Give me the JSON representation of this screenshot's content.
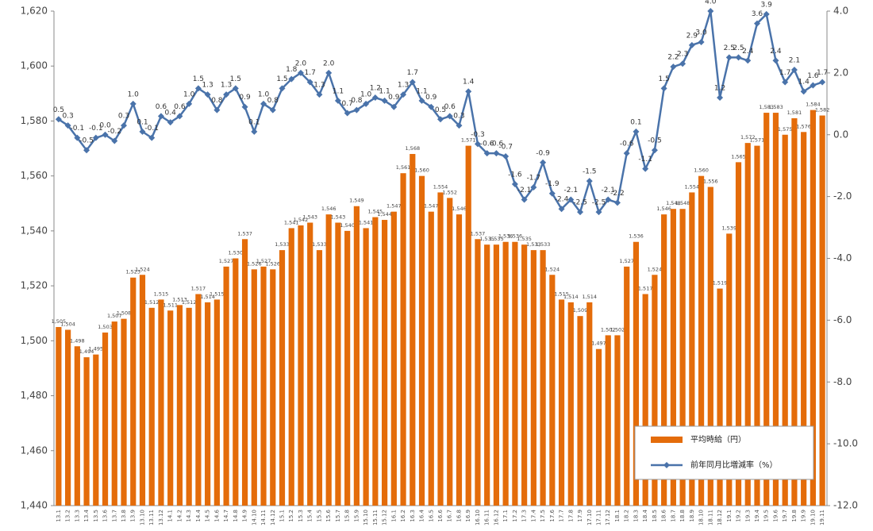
{
  "chart_data": {
    "type": "bar-line",
    "categories": [
      "13.1",
      "13.2",
      "13.3",
      "13.4",
      "13.5",
      "13.6",
      "13.7",
      "13.8",
      "13.9",
      "13.10",
      "13.11",
      "13.12",
      "14.1",
      "14.2",
      "14.3",
      "14.4",
      "14.5",
      "14.6",
      "14.7",
      "14.8",
      "14.9",
      "14.10",
      "14.11",
      "14.12",
      "15.1",
      "15.2",
      "15.3",
      "15.4",
      "15.5",
      "15.6",
      "15.7",
      "15.8",
      "15.9",
      "15.10",
      "15.11",
      "15.12",
      "16.1",
      "16.2",
      "16.3",
      "16.4",
      "16.5",
      "16.6",
      "16.7",
      "16.8",
      "16.9",
      "16.10",
      "16.11",
      "16.12",
      "17.1",
      "17.2",
      "17.3",
      "17.4",
      "17.5",
      "17.6",
      "17.7",
      "17.8",
      "17.9",
      "17.10",
      "17.11",
      "17.12",
      "18.1",
      "18.2",
      "18.3",
      "18.4",
      "18.5",
      "18.6",
      "18.7",
      "18.8",
      "18.9",
      "18.10",
      "18.11",
      "18.12",
      "19.1",
      "19.2",
      "19.3",
      "19.4",
      "19.5",
      "19.6",
      "19.7",
      "19.8",
      "19.9",
      "19.10",
      "19.11"
    ],
    "series": [
      {
        "name": "平均時給（円）",
        "color": "#e46c0a",
        "kind": "bar",
        "values": [
          1505,
          1504,
          1498,
          1494,
          1495,
          1503,
          1507,
          1508,
          1523,
          1524,
          1512,
          1515,
          1511,
          1513,
          1512,
          1517,
          1514,
          1515,
          1527,
          1530,
          1537,
          1526,
          1527,
          1526,
          1533,
          1541,
          1542,
          1543,
          1533,
          1546,
          1543,
          1540,
          1549,
          1541,
          1545,
          1544,
          1547,
          1561,
          1568,
          1560,
          1547,
          1554,
          1552,
          1546,
          1571,
          1537,
          1535,
          1535,
          1536,
          1536,
          1535,
          1533,
          1533,
          1524,
          1515,
          1514,
          1509,
          1514,
          1497,
          1502,
          1502,
          1527,
          1536,
          1517,
          1524,
          1546,
          1548,
          1548,
          1554,
          1560,
          1556,
          1519,
          1539,
          1565,
          1572,
          1571,
          1583,
          1583,
          1575,
          1581,
          1576,
          1584,
          1582
        ],
        "value_labels": [
          "1,505",
          "1,504",
          "1,498",
          "1,494",
          "1,495",
          "1,503",
          "1,507",
          "1,508",
          "1,523",
          "1,524",
          "1,512",
          "1,515",
          "1,511",
          "1,513",
          "1,512",
          "1,517",
          "1,514",
          "1,515",
          "1,527",
          "1,530",
          "1,537",
          "1,526",
          "1,527",
          "1,526",
          "1,533",
          "1,541",
          "1,542",
          "1,543",
          "1,533",
          "1,546",
          "1,543",
          "1,540",
          "1,549",
          "1,541",
          "1,545",
          "1,544",
          "1,547",
          "1,561",
          "1,568",
          "1,560",
          "1,547",
          "1,554",
          "1,552",
          "1,546",
          "1,571",
          "1,537",
          "1,535",
          "1,535",
          "1,536",
          "1,536",
          "1,535",
          "1,533",
          "1,533",
          "1,524",
          "1,515",
          "1,514",
          "1,509",
          "1,514",
          "1,497",
          "1,502",
          "1,502",
          "1,527",
          "1,536",
          "1,517",
          "1,524",
          "1,546",
          "1,548",
          "1,548",
          "1,554",
          "1,560",
          "1,556",
          "1,519",
          "1,539",
          "1,565",
          "1,572",
          "1,571",
          "1,583",
          "1,583",
          "1,575",
          "1,581",
          "1,576",
          "1,584",
          "1,582"
        ]
      },
      {
        "name": "前年同月比増減率（%）",
        "color": "#4a73aa",
        "kind": "line",
        "axis": "y2",
        "values": [
          0.5,
          0.3,
          -0.1,
          -0.5,
          -0.1,
          0.0,
          -0.2,
          0.3,
          1.0,
          0.1,
          -0.1,
          0.6,
          0.4,
          0.6,
          1.0,
          1.5,
          1.3,
          0.8,
          1.3,
          1.5,
          0.9,
          0.1,
          1.0,
          0.8,
          1.5,
          1.8,
          2.0,
          1.7,
          1.3,
          2.0,
          1.1,
          0.7,
          0.8,
          1.0,
          1.2,
          1.1,
          0.9,
          1.3,
          1.7,
          1.1,
          0.9,
          0.5,
          0.6,
          0.3,
          1.4,
          -0.3,
          -0.6,
          -0.6,
          -0.7,
          -1.6,
          -2.1,
          -1.7,
          -0.9,
          -1.9,
          -2.4,
          -2.1,
          -2.5,
          -1.5,
          -2.5,
          -2.1,
          -2.2,
          -0.6,
          0.1,
          -1.1,
          -0.5,
          1.5,
          2.2,
          2.3,
          2.9,
          3.0,
          4.0,
          1.2,
          2.5,
          2.5,
          2.4,
          3.6,
          3.9,
          2.4,
          1.7,
          2.1,
          1.4,
          1.6,
          1.7
        ],
        "value_labels": [
          "0.5",
          "0.3",
          "-0.1",
          "-0.5",
          "-0.1",
          "0.0",
          "-0.2",
          "0.3",
          "1.0",
          "0.1",
          "-0.1",
          "0.6",
          "0.4",
          "0.6",
          "1.0",
          "1.5",
          "1.3",
          "0.8",
          "1.3",
          "1.5",
          "0.9",
          "0.1",
          "1.0",
          "0.8",
          "1.5",
          "1.8",
          "2.0",
          "1.7",
          "1.3",
          "2.0",
          "1.1",
          "0.7",
          "0.8",
          "1.0",
          "1.2",
          "1.1",
          "0.9",
          "1.3",
          "1.7",
          "1.1",
          "0.9",
          "0.5",
          "0.6",
          "0.3",
          "1.4",
          "-0.3",
          "-0.6",
          "-0.6",
          "-0.7",
          "-1.6",
          "-2.1",
          "-1.7",
          "-0.9",
          "-1.9",
          "-2.4",
          "-2.1",
          "-2.5",
          "-1.5",
          "-2.5",
          "-2.1",
          "-2.2",
          "-0.6",
          "0.1",
          "-1.1",
          "-0.5",
          "1.5",
          "2.2",
          "2.3",
          "2.9",
          "3.0",
          "4.0",
          "1.2",
          "2.5",
          "2.5",
          "2.4",
          "3.6",
          "3.9",
          "2.4",
          "1.7",
          "2.1",
          "1.4",
          "1.6",
          "1.7"
        ]
      }
    ],
    "ylim": [
      1440,
      1620
    ],
    "yticks": [
      {
        "value": 1440,
        "label": "1,440"
      },
      {
        "value": 1460,
        "label": "1,460"
      },
      {
        "value": 1480,
        "label": "1,480"
      },
      {
        "value": 1500,
        "label": "1,500"
      },
      {
        "value": 1520,
        "label": "1,520"
      },
      {
        "value": 1540,
        "label": "1,540"
      },
      {
        "value": 1560,
        "label": "1,560"
      },
      {
        "value": 1580,
        "label": "1,580"
      },
      {
        "value": 1600,
        "label": "1,600"
      },
      {
        "value": 1620,
        "label": "1,620"
      }
    ],
    "y2lim": [
      -12.0,
      4.0
    ],
    "y2ticks": [
      {
        "value": -12,
        "label": "-12.0"
      },
      {
        "value": -10,
        "label": "-10.0"
      },
      {
        "value": -8,
        "label": "-8.0"
      },
      {
        "value": -6,
        "label": "-6.0"
      },
      {
        "value": -4,
        "label": "-4.0"
      },
      {
        "value": -2,
        "label": "-2.0"
      },
      {
        "value": 0,
        "label": "0.0"
      },
      {
        "value": 2,
        "label": "2.0"
      },
      {
        "value": 4,
        "label": "4.0"
      }
    ],
    "legend": "lower right"
  }
}
